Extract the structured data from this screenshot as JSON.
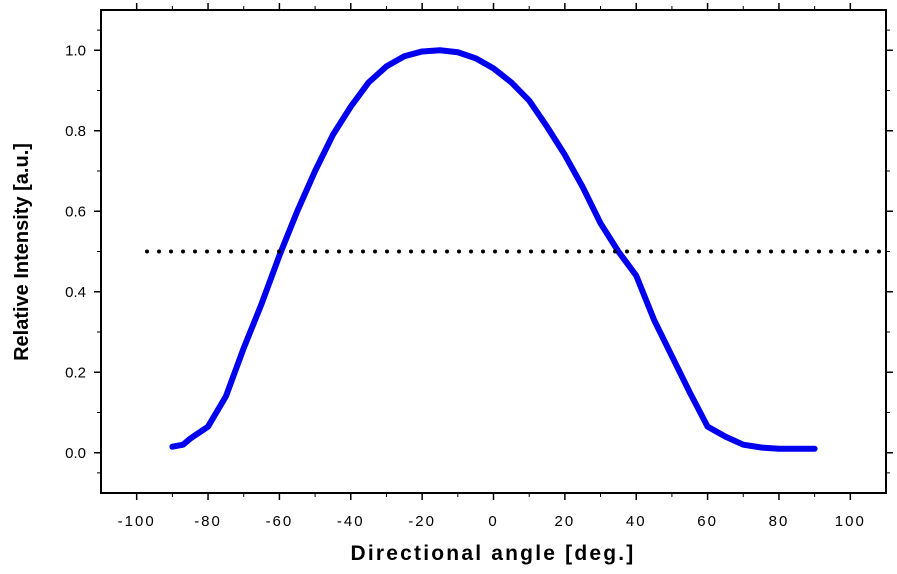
{
  "chart_data": {
    "type": "line",
    "xlabel": "Directional angle [deg.]",
    "ylabel": "Relative Intensity [a.u.]",
    "xlim": [
      -110,
      110
    ],
    "ylim": [
      -0.1,
      1.1
    ],
    "xticks": [
      -100,
      -80,
      -60,
      -40,
      -20,
      0,
      20,
      40,
      60,
      80,
      100
    ],
    "xtick_labels": [
      "-100",
      "-80",
      "-60",
      "-40",
      "-20",
      "0",
      "20",
      "40",
      "60",
      "80",
      "100"
    ],
    "yticks": [
      0.0,
      0.2,
      0.4,
      0.6,
      0.8,
      1.0
    ],
    "ytick_labels": [
      "0.0",
      "0.2",
      "0.4",
      "0.6",
      "0.8",
      "1.0"
    ],
    "grid": false,
    "series": [
      {
        "color": "#0000ee",
        "style": "solid",
        "x": [
          -90,
          -87,
          -85,
          -80,
          -75,
          -70,
          -65,
          -60,
          -55,
          -50,
          -45,
          -40,
          -35,
          -30,
          -25,
          -20,
          -15,
          -10,
          -5,
          0,
          5,
          10,
          15,
          20,
          25,
          30,
          35,
          40,
          45,
          50,
          55,
          60,
          65,
          70,
          75,
          80,
          82,
          85,
          88,
          90
        ],
        "y": [
          0.015,
          0.02,
          0.035,
          0.065,
          0.14,
          0.26,
          0.37,
          0.49,
          0.6,
          0.7,
          0.79,
          0.86,
          0.92,
          0.96,
          0.985,
          0.997,
          1.0,
          0.995,
          0.98,
          0.955,
          0.92,
          0.875,
          0.81,
          0.74,
          0.66,
          0.57,
          0.5,
          0.44,
          0.33,
          0.24,
          0.15,
          0.065,
          0.04,
          0.02,
          0.013,
          0.01,
          0.01,
          0.01,
          0.01,
          0.01
        ]
      },
      {
        "color": "#000000",
        "style": "dotted",
        "x": [
          -110,
          110
        ],
        "y": [
          0.5,
          0.5
        ]
      }
    ]
  }
}
